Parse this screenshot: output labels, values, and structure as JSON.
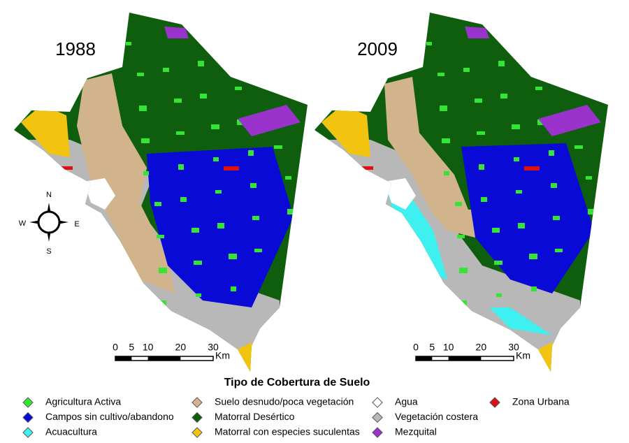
{
  "maps": [
    {
      "year": "1988"
    },
    {
      "year": "2009"
    }
  ],
  "compass": {
    "n": "N",
    "s": "S",
    "e": "E",
    "w": "W"
  },
  "scale": {
    "ticks": [
      0,
      5,
      10,
      20,
      30
    ],
    "unit": "Km"
  },
  "legend": {
    "title": "Tipo de Cobertura de Suelo",
    "items": [
      {
        "label": "Agricultura Activa",
        "color": "#33e633"
      },
      {
        "label": "Campos sin cultivo/abandono",
        "color": "#0a0ad6"
      },
      {
        "label": "Acuacultura",
        "color": "#3ef0f0"
      },
      {
        "label": "Suelo desnudo/poca vegetación",
        "color": "#d2b48c"
      },
      {
        "label": "Matorral Desértico",
        "color": "#0e5e0e"
      },
      {
        "label": "Matorral con especies suculentas",
        "color": "#f2c40f"
      },
      {
        "label": "Agua",
        "color": "#ffffff"
      },
      {
        "label": "Vegetación costera",
        "color": "#b8b8b8"
      },
      {
        "label": "Mezquital",
        "color": "#9933cc"
      },
      {
        "label": "Zona Urbana",
        "color": "#e01010"
      }
    ]
  }
}
